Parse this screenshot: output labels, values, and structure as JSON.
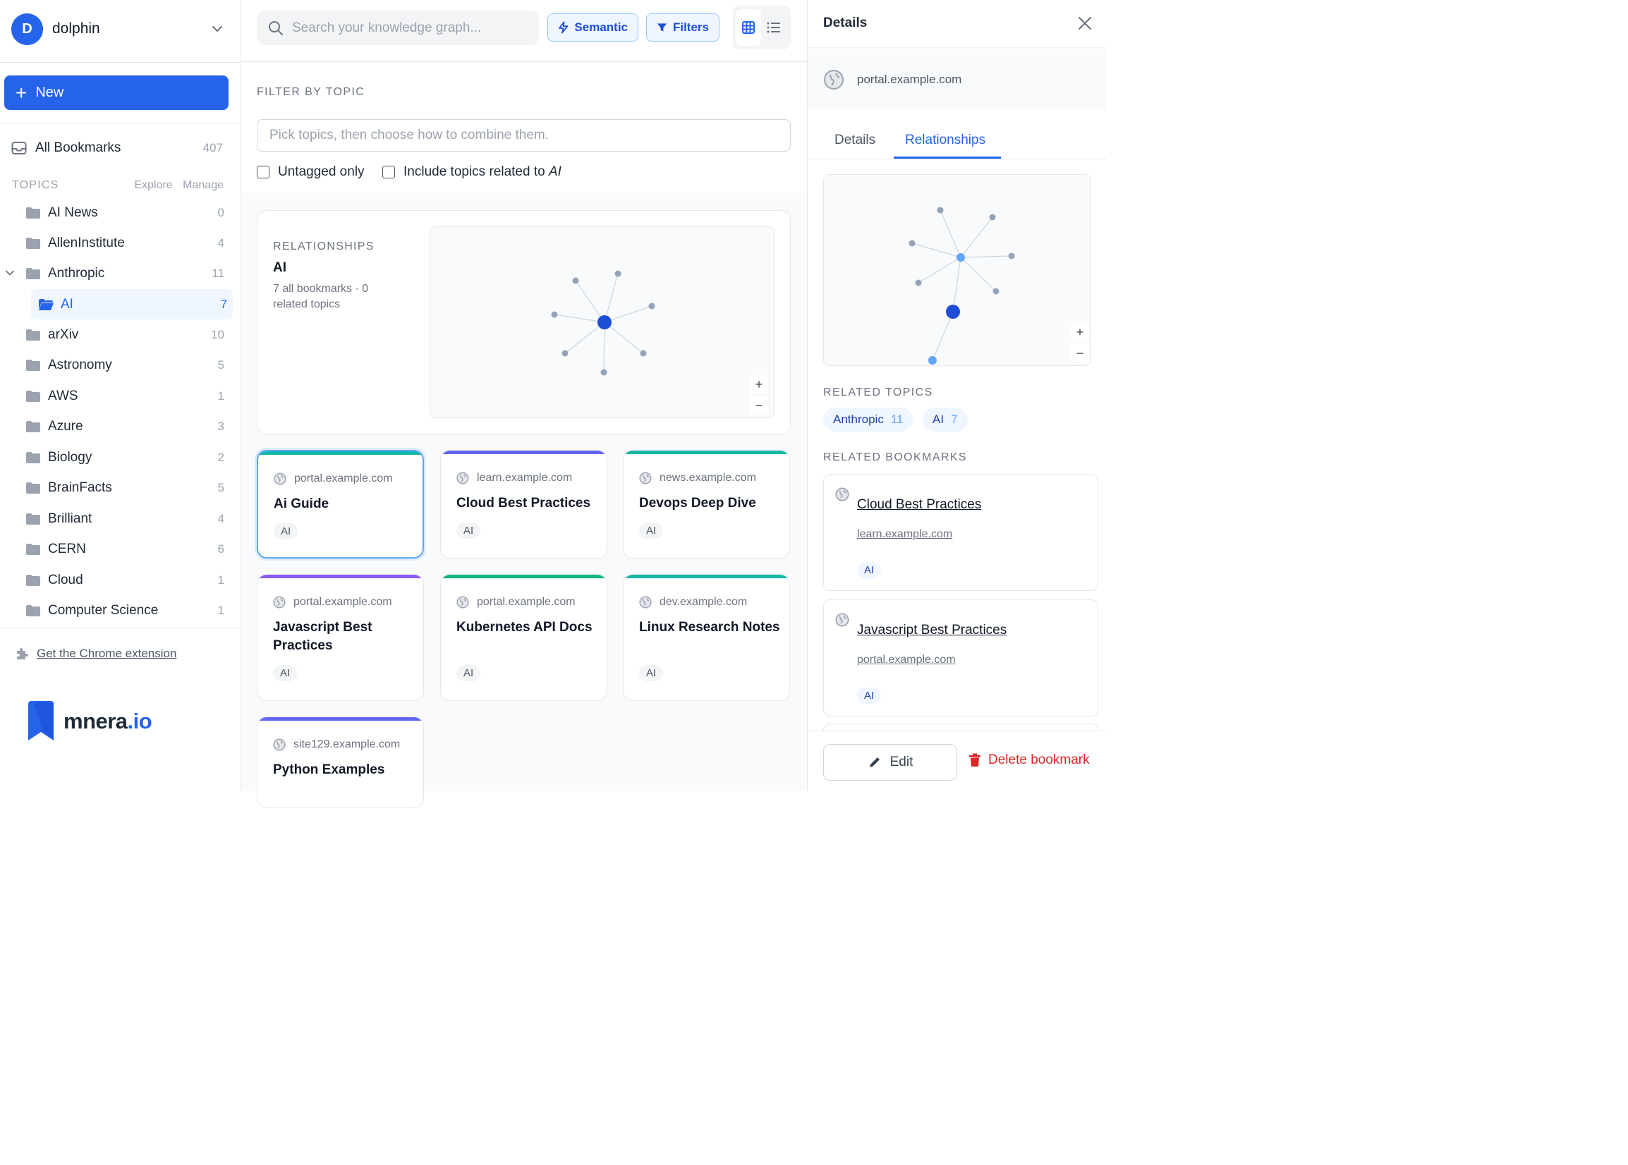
{
  "account": {
    "initial": "D",
    "name": "dolphin"
  },
  "sidebar": {
    "new_label": "New",
    "all_bookmarks": {
      "label": "All Bookmarks",
      "count": "407"
    },
    "topics_header": "TOPICS",
    "explore": "Explore",
    "manage": "Manage",
    "topics": [
      {
        "label": "AI News",
        "count": "0"
      },
      {
        "label": "AllenInstitute",
        "count": "4"
      },
      {
        "label": "Anthropic",
        "count": "11"
      },
      {
        "label": "AI",
        "count": "7"
      },
      {
        "label": "arXiv",
        "count": "10"
      },
      {
        "label": "Astronomy",
        "count": "5"
      },
      {
        "label": "AWS",
        "count": "1"
      },
      {
        "label": "Azure",
        "count": "3"
      },
      {
        "label": "Biology",
        "count": "2"
      },
      {
        "label": "BrainFacts",
        "count": "5"
      },
      {
        "label": "Brilliant",
        "count": "4"
      },
      {
        "label": "CERN",
        "count": "6"
      },
      {
        "label": "Cloud",
        "count": "1"
      },
      {
        "label": "Computer Science",
        "count": "1"
      }
    ],
    "chrome_extension": "Get the Chrome extension",
    "logo": {
      "main": "mnera",
      "suffix": ".io"
    }
  },
  "toolbar": {
    "search_placeholder": "Search your knowledge graph...",
    "semantic": "Semantic",
    "filters": "Filters"
  },
  "filter": {
    "title": "FILTER BY TOPIC",
    "placeholder": "Pick topics, then choose how to combine them.",
    "untagged": "Untagged only",
    "include_related_prefix": "Include topics related to ",
    "include_related_topic": "AI"
  },
  "relationships": {
    "label": "RELATIONSHIPS",
    "topic": "AI",
    "sub": "7 all bookmarks · 0 related topics",
    "zoom_in": "+",
    "zoom_out": "−"
  },
  "bookmarks": [
    {
      "domain": "portal.example.com",
      "title": "Ai Guide",
      "tag": "AI",
      "color": "#14b8a6"
    },
    {
      "domain": "learn.example.com",
      "title": "Cloud Best Practices",
      "tag": "AI",
      "color": "#6366f1"
    },
    {
      "domain": "news.example.com",
      "title": "Devops Deep Dive",
      "tag": "AI",
      "color": "#14b8a6"
    },
    {
      "domain": "portal.example.com",
      "title": "Javascript Best Practices",
      "tag": "AI",
      "color": "#8b5cf6"
    },
    {
      "domain": "portal.example.com",
      "title": "Kubernetes API Docs",
      "tag": "AI",
      "color": "#10b981"
    },
    {
      "domain": "dev.example.com",
      "title": "Linux Research Notes",
      "tag": "AI",
      "color": "#14b8a6"
    },
    {
      "domain": "site129.example.com",
      "title": "Python Examples",
      "tag": "AI",
      "color": "#6366f1"
    }
  ],
  "details": {
    "title": "Details",
    "site": "portal.example.com",
    "tabs": [
      "Details",
      "Relationships"
    ],
    "related_topics_label": "RELATED TOPICS",
    "related_topics": [
      {
        "label": "Anthropic",
        "count": "11"
      },
      {
        "label": "AI",
        "count": "7"
      }
    ],
    "related_bookmarks_label": "RELATED BOOKMARKS",
    "related_bookmarks": [
      {
        "title": "Cloud Best Practices",
        "url": "learn.example.com",
        "tag": "AI"
      },
      {
        "title": "Javascript Best Practices",
        "url": "portal.example.com",
        "tag": "AI"
      }
    ],
    "zoom_in": "+",
    "zoom_out": "−",
    "edit": "Edit",
    "delete": "Delete bookmark"
  }
}
